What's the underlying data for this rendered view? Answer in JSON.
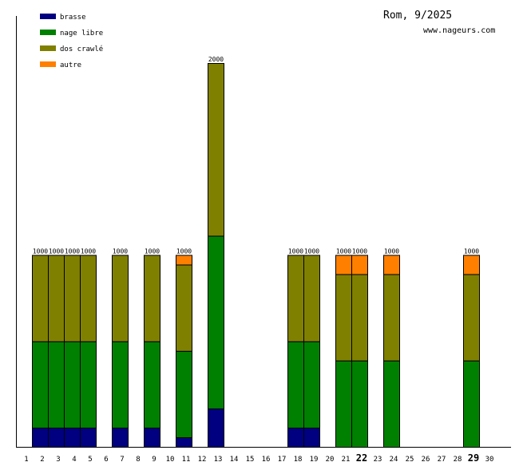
{
  "chart_data": {
    "type": "bar",
    "stacked": true,
    "title": "Rom, 9/2025",
    "subtitle": "www.nageurs.com",
    "categories": [
      "1",
      "2",
      "3",
      "4",
      "5",
      "6",
      "7",
      "8",
      "9",
      "10",
      "11",
      "12",
      "13",
      "14",
      "15",
      "16",
      "17",
      "18",
      "19",
      "20",
      "21",
      "22",
      "23",
      "24",
      "25",
      "26",
      "27",
      "28",
      "29",
      "30"
    ],
    "bold_categories": [
      "22",
      "29"
    ],
    "ylim": [
      0,
      2000
    ],
    "grid": false,
    "legend_placement": "top-left",
    "series": [
      {
        "name": "brasse",
        "color": "#000080",
        "values": [
          0,
          100,
          100,
          100,
          100,
          0,
          100,
          0,
          100,
          0,
          50,
          0,
          200,
          0,
          0,
          0,
          0,
          100,
          100,
          0,
          0,
          0,
          0,
          0,
          0,
          0,
          0,
          0,
          0,
          0
        ]
      },
      {
        "name": "nage libre",
        "color": "#008000",
        "values": [
          0,
          450,
          450,
          450,
          450,
          0,
          450,
          0,
          450,
          0,
          450,
          0,
          900,
          0,
          0,
          0,
          0,
          450,
          450,
          0,
          450,
          450,
          0,
          450,
          0,
          0,
          0,
          0,
          450,
          0
        ]
      },
      {
        "name": "dos crawlé",
        "color": "#808000",
        "values": [
          0,
          450,
          450,
          450,
          450,
          0,
          450,
          0,
          450,
          0,
          450,
          0,
          900,
          0,
          0,
          0,
          0,
          450,
          450,
          0,
          450,
          450,
          0,
          450,
          0,
          0,
          0,
          0,
          450,
          0
        ]
      },
      {
        "name": "autre",
        "color": "#ff8000",
        "values": [
          0,
          0,
          0,
          0,
          0,
          0,
          0,
          0,
          0,
          0,
          50,
          0,
          0,
          0,
          0,
          0,
          0,
          0,
          0,
          0,
          100,
          100,
          0,
          100,
          0,
          0,
          0,
          0,
          100,
          0
        ]
      }
    ],
    "totals": [
      null,
      "1000",
      "1000",
      "1000",
      "1000",
      null,
      "1000",
      null,
      "1000",
      null,
      "1000",
      null,
      "2000",
      null,
      null,
      null,
      null,
      "1000",
      "1000",
      null,
      "1000",
      "1000",
      null,
      "1000",
      null,
      null,
      null,
      null,
      "1000",
      null
    ]
  }
}
